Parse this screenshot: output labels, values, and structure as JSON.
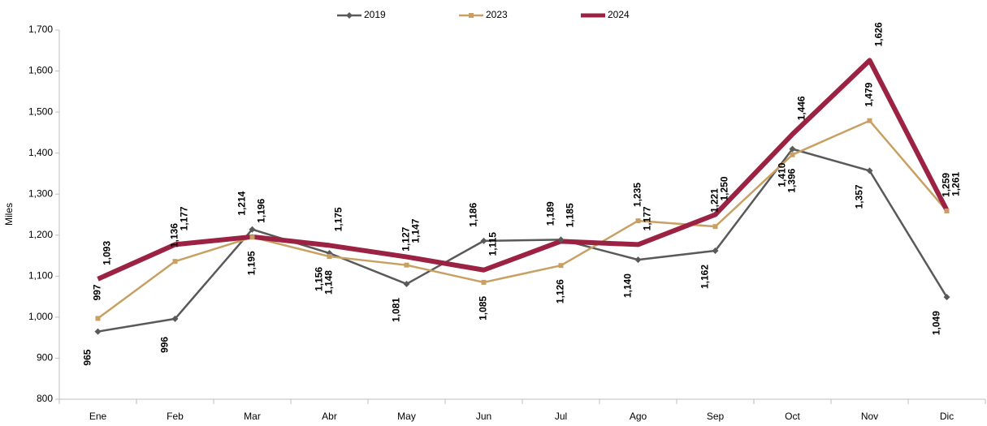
{
  "chart_data": {
    "type": "line",
    "categories": [
      "Ene",
      "Feb",
      "Mar",
      "Abr",
      "May",
      "Jun",
      "Jul",
      "Ago",
      "Sep",
      "Oct",
      "Nov",
      "Dic"
    ],
    "y_label": "Miles",
    "ylim": [
      800,
      1700
    ],
    "yticks": [
      800,
      900,
      {
        "value": 1000,
        "label": "1,000"
      },
      {
        "value": 1100,
        "label": "1,100"
      },
      {
        "value": 1200,
        "label": "1,200"
      },
      {
        "value": 1300,
        "label": "1,300"
      },
      {
        "value": 1400,
        "label": "1,400"
      },
      {
        "value": 1500,
        "label": "1,500"
      },
      {
        "value": 1600,
        "label": "1,600"
      },
      {
        "value": 1700,
        "label": "1,700"
      }
    ],
    "legend": "top",
    "series": [
      {
        "name": "2019",
        "color": "#595959",
        "label_color": "#000000",
        "width": 2.5,
        "marker": "diamond",
        "values": [
          965,
          996,
          1214,
          1156,
          1081,
          1186,
          1189,
          1140,
          1162,
          1410,
          1357,
          1049
        ],
        "value_labels": [
          "965",
          "996",
          "1,214",
          "1,156",
          "1,081",
          "1,186",
          "1,189",
          "1,140",
          "1,162",
          "1,410",
          "1,357",
          "1,049"
        ]
      },
      {
        "name": "2023",
        "color": "#c9a063",
        "label_color": "#b08a4a",
        "width": 2.5,
        "marker": "square",
        "values": [
          997,
          1136,
          1195,
          1148,
          1127,
          1085,
          1126,
          1235,
          1221,
          1396,
          1479,
          1259
        ],
        "value_labels": [
          "997",
          "1,136",
          "1,195",
          "1,148",
          "1,127",
          "1,085",
          "1,126",
          "1,235",
          "1,221",
          "1,396",
          "1,479",
          "1,259"
        ]
      },
      {
        "name": "2024",
        "color": "#9b2242",
        "label_color": "#a52a45",
        "width": 6,
        "marker": "none",
        "values": [
          1093,
          1177,
          1196,
          1175,
          1147,
          1115,
          1185,
          1177,
          1250,
          1446,
          1626,
          1261
        ],
        "value_labels": [
          "1,093",
          "1,177",
          "1,196",
          "1,175",
          "1,147",
          "1,115",
          "1,185",
          "1,177",
          "1,250",
          "1,446",
          "1,626",
          "1,261"
        ]
      }
    ]
  }
}
